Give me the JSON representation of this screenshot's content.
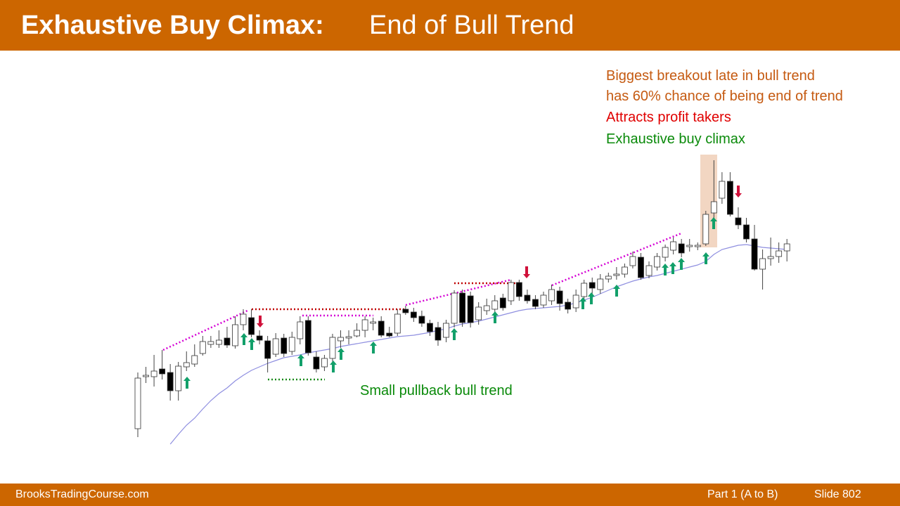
{
  "header": {
    "title_bold": "Exhaustive Buy Climax:",
    "title_rest": "End of Bull Trend"
  },
  "annotations": [
    "Biggest breakout late in bull trend",
    "has 60% chance of being end of trend",
    "Attracts profit takers",
    "Exhaustive buy climax",
    "Small pullback bull trend"
  ],
  "footer": {
    "site": "BrooksTradingCourse.com",
    "part": "Part 1 (A to B)",
    "slide": "Slide  802"
  },
  "chart_data": {
    "type": "candlestick",
    "ylim": [
      0,
      700
    ],
    "bull_color": "#ffffff",
    "bear_color": "#000000",
    "open": [
      90,
      164,
      164,
      175,
      170,
      144,
      178,
      182,
      197,
      210,
      210,
      219,
      208,
      238,
      248,
      222,
      215,
      196,
      219,
      200,
      218,
      244,
      192,
      178,
      190,
      215,
      219,
      222,
      230,
      240,
      243,
      226,
      226,
      260,
      256,
      250,
      240,
      234,
      220,
      240,
      283,
      279,
      245,
      258,
      260,
      276,
      272,
      298,
      280,
      274,
      266,
      272,
      286,
      270,
      262,
      278,
      298,
      288,
      303,
      308,
      310,
      322,
      334,
      308,
      320,
      334,
      344,
      353,
      349,
      349,
      353,
      397,
      418,
      442,
      390,
      380,
      360,
      317,
      332,
      335,
      343
    ],
    "high": [
      170,
      178,
      195,
      202,
      182,
      185,
      200,
      210,
      222,
      222,
      230,
      235,
      250,
      260,
      260,
      230,
      222,
      226,
      225,
      228,
      250,
      250,
      200,
      195,
      225,
      230,
      230,
      240,
      250,
      248,
      250,
      235,
      260,
      265,
      262,
      258,
      245,
      242,
      245,
      287,
      288,
      285,
      270,
      275,
      280,
      282,
      302,
      302,
      288,
      280,
      285,
      295,
      292,
      275,
      288,
      302,
      305,
      310,
      312,
      320,
      325,
      342,
      340,
      328,
      340,
      352,
      362,
      360,
      360,
      355,
      400,
      472,
      455,
      455,
      405,
      390,
      380,
      345,
      362,
      355,
      360
    ],
    "low": [
      78,
      155,
      150,
      160,
      130,
      130,
      172,
      178,
      194,
      205,
      205,
      205,
      204,
      230,
      220,
      210,
      170,
      192,
      192,
      195,
      210,
      194,
      170,
      172,
      185,
      205,
      210,
      220,
      220,
      230,
      220,
      220,
      222,
      252,
      242,
      235,
      222,
      208,
      213,
      234,
      235,
      234,
      238,
      252,
      255,
      258,
      266,
      272,
      268,
      260,
      262,
      266,
      258,
      254,
      256,
      270,
      282,
      282,
      298,
      302,
      305,
      318,
      302,
      304,
      315,
      328,
      338,
      334,
      342,
      344,
      350,
      390,
      410,
      392,
      374,
      355,
      315,
      288,
      322,
      326,
      328
    ],
    "close": [
      162,
      166,
      172,
      168,
      144,
      179,
      184,
      194,
      214,
      214,
      216,
      209,
      238,
      253,
      224,
      216,
      190,
      218,
      197,
      220,
      242,
      198,
      175,
      190,
      220,
      220,
      221,
      230,
      245,
      242,
      223,
      222,
      253,
      255,
      248,
      240,
      228,
      216,
      240,
      283,
      241,
      241,
      263,
      265,
      272,
      262,
      298,
      278,
      272,
      264,
      280,
      288,
      268,
      260,
      280,
      297,
      290,
      303,
      307,
      310,
      320,
      335,
      305,
      322,
      335,
      348,
      356,
      340,
      351,
      351,
      395,
      413,
      442,
      395,
      380,
      360,
      317,
      332,
      335,
      343,
      353
    ],
    "series": [
      {
        "color": "#8f8fe0",
        "values": [
          null,
          null,
          null,
          null,
          68,
          82,
          95,
          105,
          118,
          130,
          140,
          148,
          158,
          166,
          173,
          178,
          183,
          187,
          191,
          193,
          195,
          198,
          200,
          202,
          204,
          207,
          209,
          211,
          213,
          215,
          217,
          219,
          221,
          222,
          223,
          225,
          227,
          230,
          232,
          236,
          239,
          241,
          243,
          246,
          249,
          252,
          255,
          258,
          260,
          261,
          262,
          263,
          264,
          266,
          269,
          273,
          277,
          282,
          287,
          292,
          296,
          300,
          303,
          306,
          308,
          311,
          314,
          317,
          320,
          323,
          328,
          338,
          345,
          348,
          351,
          352,
          350,
          348,
          347,
          346,
          345
        ]
      }
    ]
  }
}
